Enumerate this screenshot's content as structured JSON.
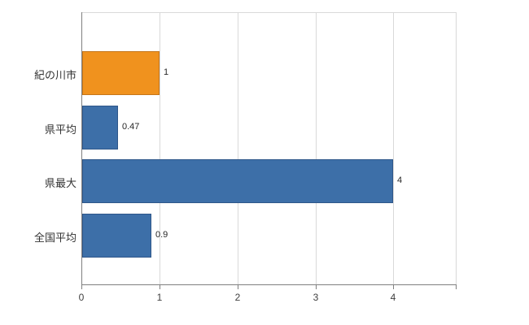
{
  "chart_data": {
    "type": "bar",
    "orientation": "horizontal",
    "title": "",
    "xlabel": "",
    "ylabel": "",
    "categories": [
      "紀の川市",
      "県平均",
      "県最大",
      "全国平均"
    ],
    "values": [
      1,
      0.47,
      4,
      0.9
    ],
    "value_labels": [
      "1",
      "0.47",
      "4",
      "0.9"
    ],
    "bar_colors": [
      "#f0921e",
      "#3d6fa8",
      "#3d6fa8",
      "#3d6fa8"
    ],
    "bar_border_colors": [
      "#c5761a",
      "#2f578a",
      "#2f578a",
      "#2f578a"
    ],
    "xlim": [
      0,
      4.8
    ],
    "x_ticks": [
      0,
      1,
      2,
      3,
      4
    ],
    "x_tick_labels": [
      "0",
      "1",
      "2",
      "3",
      "4"
    ],
    "grid": true,
    "legend": "none",
    "gridline_color": "#d9d9d9",
    "axis_color": "#808080",
    "background_color": "#ffffff"
  }
}
